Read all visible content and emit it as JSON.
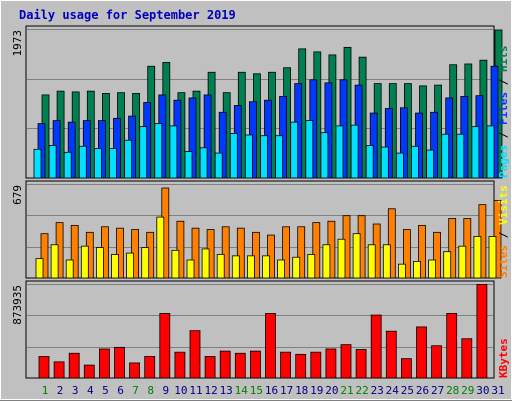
{
  "title": "Daily usage for September 2019",
  "colors": {
    "pages": "#00e0ff",
    "files": "#0038ff",
    "hits": "#008050",
    "visits": "#ffff00",
    "sites": "#ff8000",
    "kbytes": "#ff0000",
    "weekend_label": "#008000",
    "weekday_label": "#000080",
    "separator": "#000000"
  },
  "chart_data": [
    {
      "type": "bar",
      "panel": "top",
      "ymax_label": "1973",
      "ylim": [
        0,
        1973
      ],
      "legend": [
        {
          "text": "Pages",
          "color_key": "pages"
        },
        {
          "text": "Files",
          "color_key": "files"
        },
        {
          "text": "Hits",
          "color_key": "hits"
        }
      ],
      "separator": "/",
      "series": [
        {
          "name": "Hits",
          "color_key": "hits",
          "values": [
            1100,
            1150,
            1140,
            1150,
            1120,
            1130,
            1120,
            1480,
            1530,
            1130,
            1150,
            1400,
            1130,
            1400,
            1380,
            1400,
            1460,
            1710,
            1670,
            1630,
            1730,
            1600,
            1250,
            1250,
            1250,
            1220,
            1230,
            1500,
            1510,
            1560,
            1960
          ]
        },
        {
          "name": "Files",
          "color_key": "files",
          "values": [
            720,
            760,
            740,
            760,
            760,
            790,
            820,
            1000,
            1100,
            1030,
            1060,
            1100,
            870,
            960,
            1010,
            1030,
            1080,
            1250,
            1300,
            1260,
            1300,
            1230,
            860,
            920,
            930,
            860,
            870,
            1060,
            1080,
            1090,
            1480
          ]
        },
        {
          "name": "Pages",
          "color_key": "pages",
          "values": [
            380,
            430,
            340,
            420,
            390,
            390,
            500,
            680,
            720,
            690,
            350,
            400,
            330,
            590,
            570,
            560,
            560,
            740,
            760,
            600,
            690,
            700,
            430,
            410,
            330,
            420,
            370,
            580,
            580,
            680,
            690
          ]
        }
      ],
      "grid": true
    },
    {
      "type": "bar",
      "panel": "middle",
      "ymax_label": "679",
      "ylim": [
        0,
        679
      ],
      "legend": [
        {
          "text": "Sites",
          "color_key": "sites"
        },
        {
          "text": "Visits",
          "color_key": "visits"
        }
      ],
      "separator": "/",
      "series": [
        {
          "name": "Sites",
          "color_key": "sites",
          "values": [
            320,
            400,
            380,
            330,
            370,
            360,
            350,
            330,
            650,
            410,
            360,
            350,
            370,
            360,
            330,
            310,
            370,
            370,
            400,
            410,
            450,
            450,
            390,
            500,
            350,
            380,
            330,
            430,
            430,
            530,
            560
          ]
        },
        {
          "name": "Visits",
          "color_key": "visits",
          "values": [
            140,
            240,
            130,
            230,
            220,
            170,
            180,
            220,
            440,
            200,
            130,
            210,
            170,
            160,
            160,
            160,
            130,
            150,
            170,
            240,
            280,
            320,
            240,
            240,
            100,
            120,
            130,
            190,
            230,
            300,
            300
          ]
        }
      ],
      "grid": true
    },
    {
      "type": "bar",
      "panel": "bottom",
      "ymax_label": "873935",
      "ylim": [
        0,
        873935
      ],
      "legend": [
        {
          "text": "KBytes",
          "color_key": "kbytes"
        }
      ],
      "series": [
        {
          "name": "KBytes",
          "color_key": "kbytes",
          "values": [
            200000,
            150000,
            230000,
            120000,
            270000,
            285000,
            140000,
            200000,
            600000,
            240000,
            440000,
            200000,
            250000,
            230000,
            250000,
            600000,
            240000,
            220000,
            240000,
            270000,
            310000,
            265000,
            585000,
            435000,
            180000,
            475000,
            300000,
            600000,
            365000,
            870000,
            0
          ]
        }
      ],
      "grid": true
    }
  ],
  "x_labels": [
    "1",
    "2",
    "3",
    "4",
    "5",
    "6",
    "7",
    "8",
    "9",
    "10",
    "11",
    "12",
    "13",
    "14",
    "15",
    "16",
    "17",
    "18",
    "19",
    "20",
    "21",
    "22",
    "23",
    "24",
    "25",
    "26",
    "27",
    "28",
    "29",
    "30",
    "31"
  ],
  "weekend_days": [
    "1",
    "7",
    "8",
    "14",
    "15",
    "21",
    "22",
    "28",
    "29"
  ]
}
